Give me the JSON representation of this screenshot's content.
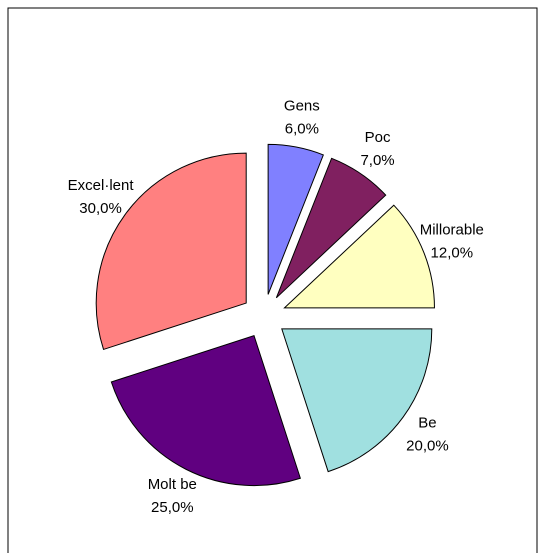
{
  "chart_data": {
    "type": "pie",
    "categories": [
      "Gens",
      "Poc",
      "Millorable",
      "Be",
      "Molt be",
      "Excel·lent"
    ],
    "values": [
      6,
      7,
      12,
      20,
      25,
      30
    ],
    "value_labels": [
      "6,0%",
      "7,0%",
      "12,0%",
      "20,0%",
      "25,0%",
      "30,0%"
    ],
    "colors": [
      "#8080ff",
      "#802060",
      "#ffffc0",
      "#a0e0e0",
      "#600080",
      "#ff8080"
    ]
  }
}
